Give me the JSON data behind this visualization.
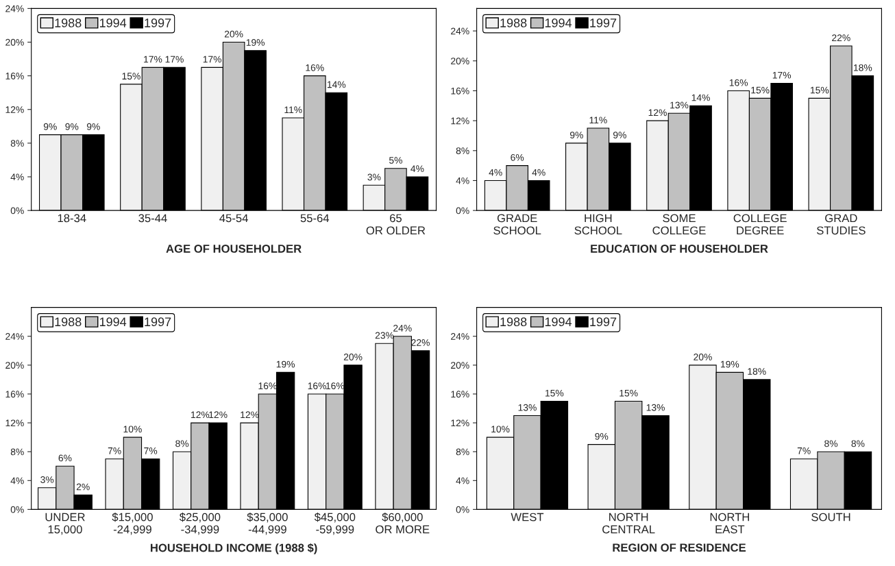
{
  "chart_data": [
    {
      "type": "bar",
      "xlabel": "AGE OF HOUSEHOLDER",
      "categories": [
        "18-34",
        "35-44",
        "45-54",
        "55-64",
        "65\nOR OLDER"
      ],
      "ylim": [
        0,
        24
      ],
      "yticks": [
        {
          "value": 0,
          "label": "0%"
        },
        {
          "value": 4,
          "label": "4%"
        },
        {
          "value": 8,
          "label": "8%"
        },
        {
          "value": 12,
          "label": "12%"
        },
        {
          "value": 16,
          "label": "16%"
        },
        {
          "value": 20,
          "label": "20%"
        },
        {
          "value": 24,
          "label": "24%"
        }
      ],
      "legend": "top left",
      "grid": false,
      "series": [
        {
          "name": "1988",
          "color": "#f0f0f0",
          "values": [
            9,
            15,
            17,
            11,
            3
          ],
          "value_labels": [
            "9%",
            "15%",
            "17%",
            "11%",
            "3%"
          ]
        },
        {
          "name": "1994",
          "color": "#c0c0c0",
          "values": [
            9,
            17,
            20,
            16,
            5
          ],
          "value_labels": [
            "9%",
            "17%",
            "20%",
            "16%",
            "5%"
          ]
        },
        {
          "name": "1997",
          "color": "#000000",
          "values": [
            9,
            17,
            19,
            14,
            4
          ],
          "value_labels": [
            "9%",
            "17%",
            "19%",
            "14%",
            "4%"
          ]
        }
      ]
    },
    {
      "type": "bar",
      "xlabel": "EDUCATION OF HOUSEHOLDER",
      "categories": [
        "GRADE\nSCHOOL",
        "HIGH\nSCHOOL",
        "SOME\nCOLLEGE",
        "COLLEGE\nDEGREE",
        "GRAD\nSTUDIES"
      ],
      "ylim": [
        0,
        27
      ],
      "yticks": [
        {
          "value": 0,
          "label": "0%"
        },
        {
          "value": 4,
          "label": "4%"
        },
        {
          "value": 8,
          "label": "8%"
        },
        {
          "value": 12,
          "label": "12%"
        },
        {
          "value": 16,
          "label": "16%"
        },
        {
          "value": 20,
          "label": "20%"
        },
        {
          "value": 24,
          "label": "24%"
        }
      ],
      "legend": "top left",
      "grid": false,
      "series": [
        {
          "name": "1988",
          "color": "#f0f0f0",
          "values": [
            4,
            9,
            12,
            16,
            15
          ],
          "value_labels": [
            "4%",
            "9%",
            "12%",
            "16%",
            "15%"
          ]
        },
        {
          "name": "1994",
          "color": "#c0c0c0",
          "values": [
            6,
            11,
            13,
            15,
            22
          ],
          "value_labels": [
            "6%",
            "11%",
            "13%",
            "15%",
            "22%"
          ]
        },
        {
          "name": "1997",
          "color": "#000000",
          "values": [
            4,
            9,
            14,
            17,
            18
          ],
          "value_labels": [
            "4%",
            "9%",
            "14%",
            "17%",
            "18%"
          ]
        }
      ]
    },
    {
      "type": "bar",
      "xlabel": "HOUSEHOLD INCOME (1988 $)",
      "categories": [
        "UNDER\n15,000",
        "$15,000\n-24,999",
        "$25,000\n-34,999",
        "$35,000\n-44,999",
        "$45,000\n-59,999",
        "$60,000\nOR MORE"
      ],
      "ylim": [
        0,
        28
      ],
      "yticks": [
        {
          "value": 0,
          "label": "0%"
        },
        {
          "value": 4,
          "label": "4%"
        },
        {
          "value": 8,
          "label": "8%"
        },
        {
          "value": 12,
          "label": "12%"
        },
        {
          "value": 16,
          "label": "16%"
        },
        {
          "value": 20,
          "label": "20%"
        },
        {
          "value": 24,
          "label": "24%"
        }
      ],
      "legend": "top left",
      "grid": false,
      "series": [
        {
          "name": "1988",
          "color": "#f0f0f0",
          "values": [
            3,
            7,
            8,
            12,
            16,
            23
          ],
          "value_labels": [
            "3%",
            "7%",
            "8%",
            "12%",
            "16%",
            "23%"
          ]
        },
        {
          "name": "1994",
          "color": "#c0c0c0",
          "values": [
            6,
            10,
            12,
            16,
            16,
            24
          ],
          "value_labels": [
            "6%",
            "10%",
            "12%",
            "16%",
            "16%",
            "24%"
          ]
        },
        {
          "name": "1997",
          "color": "#000000",
          "values": [
            2,
            7,
            12,
            19,
            20,
            22
          ],
          "value_labels": [
            "2%",
            "7%",
            "12%",
            "19%",
            "20%",
            "22%"
          ]
        }
      ]
    },
    {
      "type": "bar",
      "xlabel": "REGION OF RESIDENCE",
      "categories": [
        "WEST",
        "NORTH\nCENTRAL",
        "NORTH\nEAST",
        "SOUTH"
      ],
      "ylim": [
        0,
        28
      ],
      "yticks": [
        {
          "value": 0,
          "label": "0%"
        },
        {
          "value": 4,
          "label": "4%"
        },
        {
          "value": 8,
          "label": "8%"
        },
        {
          "value": 12,
          "label": "12%"
        },
        {
          "value": 16,
          "label": "16%"
        },
        {
          "value": 20,
          "label": "20%"
        },
        {
          "value": 24,
          "label": "24%"
        }
      ],
      "legend": "top left",
      "grid": false,
      "series": [
        {
          "name": "1988",
          "color": "#f0f0f0",
          "values": [
            10,
            9,
            20,
            7
          ],
          "value_labels": [
            "10%",
            "9%",
            "20%",
            "7%"
          ]
        },
        {
          "name": "1994",
          "color": "#c0c0c0",
          "values": [
            13,
            15,
            19,
            8
          ],
          "value_labels": [
            "13%",
            "15%",
            "19%",
            "8%"
          ]
        },
        {
          "name": "1997",
          "color": "#000000",
          "values": [
            15,
            13,
            18,
            8
          ],
          "value_labels": [
            "15%",
            "13%",
            "18%",
            "8%"
          ]
        }
      ]
    }
  ]
}
